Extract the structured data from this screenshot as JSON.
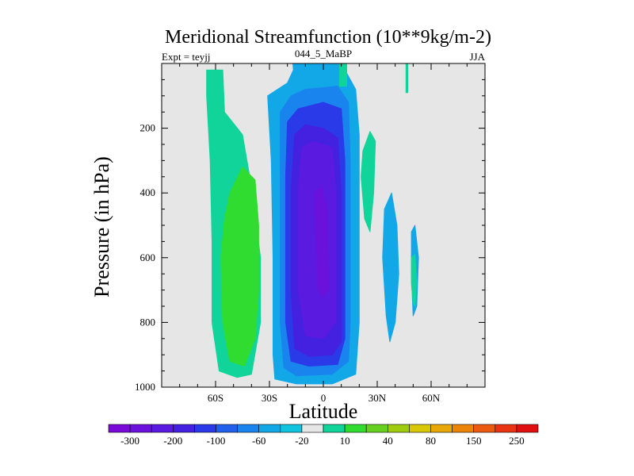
{
  "chart_data": {
    "type": "contour",
    "title": "Meridional Streamfunction (10**9kg/m-2)",
    "left_label": "Expt = teyjj",
    "center_label": "044_5_MaBP",
    "right_label": "JJA",
    "xlabel": "Latitude",
    "ylabel": "Pressure (in hPa)",
    "xlim": [
      -90,
      90
    ],
    "ylim": [
      1000,
      0
    ],
    "x_ticks": [
      {
        "value": -60,
        "label": "60S"
      },
      {
        "value": -30,
        "label": "30S"
      },
      {
        "value": 0,
        "label": "0"
      },
      {
        "value": 30,
        "label": "30N"
      },
      {
        "value": 60,
        "label": "60N"
      }
    ],
    "y_ticks": [
      {
        "value": 200,
        "label": "200"
      },
      {
        "value": 400,
        "label": "400"
      },
      {
        "value": 600,
        "label": "600"
      },
      {
        "value": 800,
        "label": "800"
      },
      {
        "value": 1000,
        "label": "1000"
      }
    ],
    "colorbar": {
      "labels": [
        "-300",
        "-200",
        "-100",
        "-60",
        "-20",
        "10",
        "40",
        "80",
        "150",
        "250"
      ],
      "colors": [
        "#7a0ad8",
        "#6a12dc",
        "#5a1ae0",
        "#4420e0",
        "#2a3ae8",
        "#2060ea",
        "#1a84ee",
        "#12a8e8",
        "#10c4e0",
        "#e6e6e6",
        "#10d49a",
        "#30dc30",
        "#66d020",
        "#a0cc10",
        "#d8c808",
        "#e8a808",
        "#ec8408",
        "#ec5a10",
        "#e83410",
        "#e01010"
      ]
    },
    "regions": [
      {
        "name": "sh-outer-cell",
        "level": "10",
        "color": "#10d49a",
        "outline": [
          [
            -65,
            20
          ],
          [
            -56,
            20
          ],
          [
            -55,
            150
          ],
          [
            -45,
            220
          ],
          [
            -40,
            380
          ],
          [
            -35,
            600
          ],
          [
            -35,
            800
          ],
          [
            -40,
            960
          ],
          [
            -48,
            970
          ],
          [
            -58,
            950
          ],
          [
            -62,
            800
          ],
          [
            -62,
            550
          ],
          [
            -63,
            300
          ],
          [
            -65,
            100
          ]
        ]
      },
      {
        "name": "sh-inner-cell",
        "level": "40",
        "color": "#30dc30",
        "outline": [
          [
            -52,
            400
          ],
          [
            -45,
            320
          ],
          [
            -38,
            360
          ],
          [
            -36,
            500
          ],
          [
            -36,
            700
          ],
          [
            -38,
            850
          ],
          [
            -44,
            935
          ],
          [
            -52,
            920
          ],
          [
            -56,
            800
          ],
          [
            -57,
            600
          ],
          [
            -55,
            480
          ]
        ]
      },
      {
        "name": "hadley-cell-l1",
        "level": "-20",
        "color": "#12a8e8",
        "outline": [
          [
            -31,
            100
          ],
          [
            -20,
            60
          ],
          [
            -15,
            0
          ],
          [
            10,
            0
          ],
          [
            18,
            80
          ],
          [
            20,
            220
          ],
          [
            20,
            800
          ],
          [
            18,
            960
          ],
          [
            5,
            990
          ],
          [
            -15,
            990
          ],
          [
            -27,
            975
          ],
          [
            -28,
            900
          ],
          [
            -28,
            600
          ],
          [
            -29,
            300
          ]
        ]
      },
      {
        "name": "hadley-cell-l2",
        "level": "-60",
        "color": "#1a84ee",
        "outline": [
          [
            -24,
            150
          ],
          [
            -18,
            100
          ],
          [
            -10,
            80
          ],
          [
            8,
            70
          ],
          [
            14,
            120
          ],
          [
            15,
            300
          ],
          [
            15,
            800
          ],
          [
            14,
            920
          ],
          [
            5,
            960
          ],
          [
            -15,
            965
          ],
          [
            -22,
            940
          ],
          [
            -24,
            800
          ],
          [
            -24,
            400
          ]
        ]
      },
      {
        "name": "hadley-cell-l3",
        "level": "-100",
        "color": "#2a3ae8",
        "outline": [
          [
            -20,
            180
          ],
          [
            -14,
            140
          ],
          [
            0,
            120
          ],
          [
            10,
            140
          ],
          [
            12,
            300
          ],
          [
            12,
            850
          ],
          [
            8,
            930
          ],
          [
            -8,
            935
          ],
          [
            -18,
            920
          ],
          [
            -21,
            800
          ],
          [
            -21,
            350
          ]
        ]
      },
      {
        "name": "hadley-cell-l4",
        "level": "-200",
        "color": "#4420e0",
        "outline": [
          [
            -16,
            220
          ],
          [
            -10,
            190
          ],
          [
            0,
            200
          ],
          [
            8,
            230
          ],
          [
            10,
            400
          ],
          [
            10,
            860
          ],
          [
            5,
            900
          ],
          [
            -8,
            905
          ],
          [
            -16,
            880
          ],
          [
            -18,
            700
          ],
          [
            -18,
            400
          ]
        ]
      },
      {
        "name": "hadley-cell-l5",
        "level": "-300",
        "color": "#5a1ae0",
        "outline": [
          [
            -12,
            260
          ],
          [
            -6,
            240
          ],
          [
            5,
            260
          ],
          [
            7,
            400
          ],
          [
            7,
            800
          ],
          [
            0,
            850
          ],
          [
            -10,
            840
          ],
          [
            -14,
            700
          ],
          [
            -14,
            400
          ]
        ]
      },
      {
        "name": "hadley-cell-core",
        "level": "-300",
        "color": "#6a12dc",
        "outline": [
          [
            -5,
            400
          ],
          [
            -1,
            380
          ],
          [
            2,
            450
          ],
          [
            3,
            700
          ],
          [
            0,
            720
          ],
          [
            -3,
            700
          ],
          [
            -4,
            550
          ]
        ]
      },
      {
        "name": "nh-upper-left-lobe",
        "level": "10",
        "color": "#10d49a",
        "outline": [
          [
            22,
            270
          ],
          [
            26,
            210
          ],
          [
            29,
            240
          ],
          [
            28,
            400
          ],
          [
            26,
            520
          ],
          [
            23,
            480
          ],
          [
            21,
            350
          ]
        ]
      },
      {
        "name": "nh-mid-lobe",
        "level": "-20",
        "color": "#12a8e8",
        "outline": [
          [
            34,
            450
          ],
          [
            38,
            400
          ],
          [
            41,
            500
          ],
          [
            42,
            650
          ],
          [
            40,
            800
          ],
          [
            37,
            860
          ],
          [
            35,
            780
          ],
          [
            33,
            600
          ]
        ]
      },
      {
        "name": "nh-right-lobe",
        "level": "-20",
        "color": "#12a8e8",
        "outline": [
          [
            49,
            520
          ],
          [
            51,
            500
          ],
          [
            53,
            600
          ],
          [
            52,
            750
          ],
          [
            50,
            780
          ],
          [
            49,
            650
          ]
        ]
      },
      {
        "name": "nh-right-green",
        "level": "10",
        "color": "#10d49a",
        "outline": [
          [
            49,
            600
          ],
          [
            51,
            590
          ],
          [
            52,
            680
          ],
          [
            51,
            750
          ],
          [
            50,
            740
          ],
          [
            49,
            680
          ]
        ]
      },
      {
        "name": "nh-top-sliver",
        "level": "10",
        "color": "#10d49a",
        "outline": [
          [
            46,
            0
          ],
          [
            47,
            0
          ],
          [
            47,
            90
          ],
          [
            46,
            90
          ]
        ]
      },
      {
        "name": "nh-top-cyan",
        "level": "-20",
        "color": "#12a8e8",
        "outline": [
          [
            -17,
            0
          ],
          [
            -14,
            0
          ],
          [
            -12,
            60
          ],
          [
            -16,
            60
          ]
        ]
      },
      {
        "name": "nh-top-green",
        "level": "10",
        "color": "#10d49a",
        "outline": [
          [
            9,
            0
          ],
          [
            13,
            0
          ],
          [
            13,
            70
          ],
          [
            9,
            70
          ]
        ]
      }
    ]
  }
}
